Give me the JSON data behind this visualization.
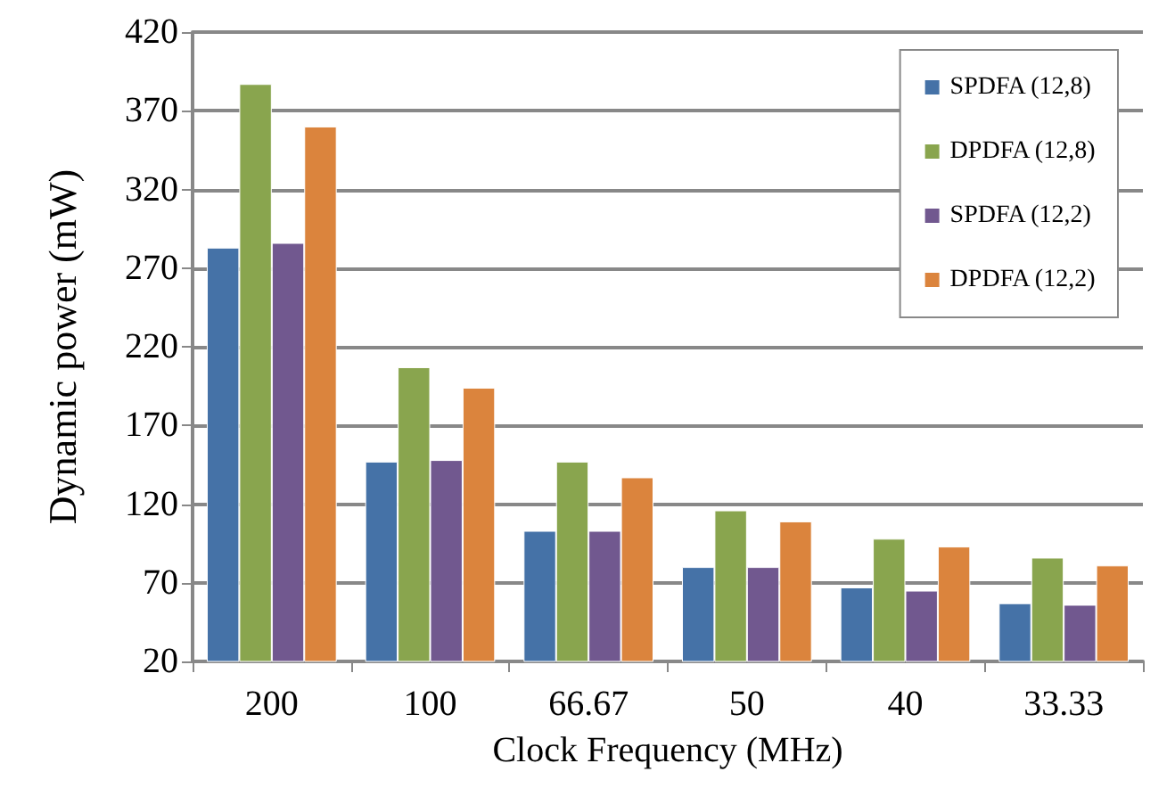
{
  "chart_data": {
    "type": "bar",
    "xlabel": "Clock Frequency (MHz)",
    "ylabel": "Dynamic power (mW)",
    "categories": [
      "200",
      "100",
      "66.67",
      "50",
      "40",
      "33.33"
    ],
    "series": [
      {
        "name": "SPDFA (12,8)",
        "color": "#4572a7",
        "values": [
          283,
          147,
          103,
          80,
          67,
          57
        ]
      },
      {
        "name": "DPDFA (12,8)",
        "color": "#89a54e",
        "values": [
          387,
          207,
          147,
          116,
          98,
          86
        ]
      },
      {
        "name": "SPDFA (12,2)",
        "color": "#71588f",
        "values": [
          286,
          148,
          103,
          80,
          65,
          56
        ]
      },
      {
        "name": "DPDFA (12,2)",
        "color": "#db843d",
        "values": [
          360,
          194,
          137,
          109,
          93,
          81
        ]
      }
    ],
    "ylim": [
      20,
      420
    ],
    "yticks": [
      20,
      70,
      120,
      170,
      220,
      270,
      320,
      370,
      420
    ],
    "grid": "y",
    "legend": "top right"
  }
}
